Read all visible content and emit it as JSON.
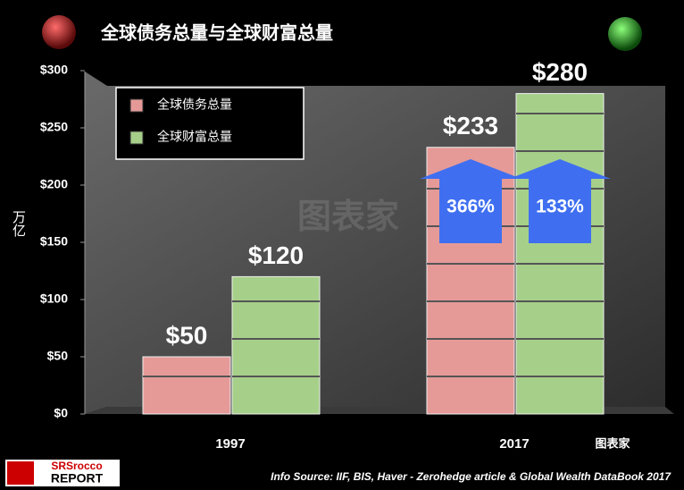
{
  "chart_data": {
    "type": "bar",
    "title": "全球债务总量与全球财富总量",
    "y_label": "万亿",
    "categories": [
      "1997",
      "2017"
    ],
    "series": [
      {
        "name": "全球债务总量",
        "color": "#e59a98",
        "values": [
          50,
          233
        ],
        "value_labels": [
          "$50",
          "$233"
        ]
      },
      {
        "name": "全球财富总量",
        "color": "#a6d08a",
        "values": [
          120,
          280
        ],
        "value_labels": [
          "$120",
          "$280"
        ]
      }
    ],
    "ylim": [
      0,
      300
    ],
    "yticks": [
      {
        "value": 0,
        "label": "$0"
      },
      {
        "value": 50,
        "label": "$50"
      },
      {
        "value": 100,
        "label": "$100"
      },
      {
        "value": 150,
        "label": "$150"
      },
      {
        "value": 200,
        "label": "$200"
      },
      {
        "value": 250,
        "label": "$250"
      },
      {
        "value": 300,
        "label": "$300"
      }
    ],
    "grid": false,
    "legend_position": "upper left",
    "annotations": [
      {
        "text": "366%",
        "series": 0,
        "category": 1
      },
      {
        "text": "133%",
        "series": 1,
        "category": 1
      }
    ],
    "watermark": "图表家",
    "logo": [
      "SRSrocco",
      "REPORT"
    ],
    "source": "Info Source: IIF, BIS, Haver - Zerohedge article & Global Wealth DataBook 2017"
  }
}
